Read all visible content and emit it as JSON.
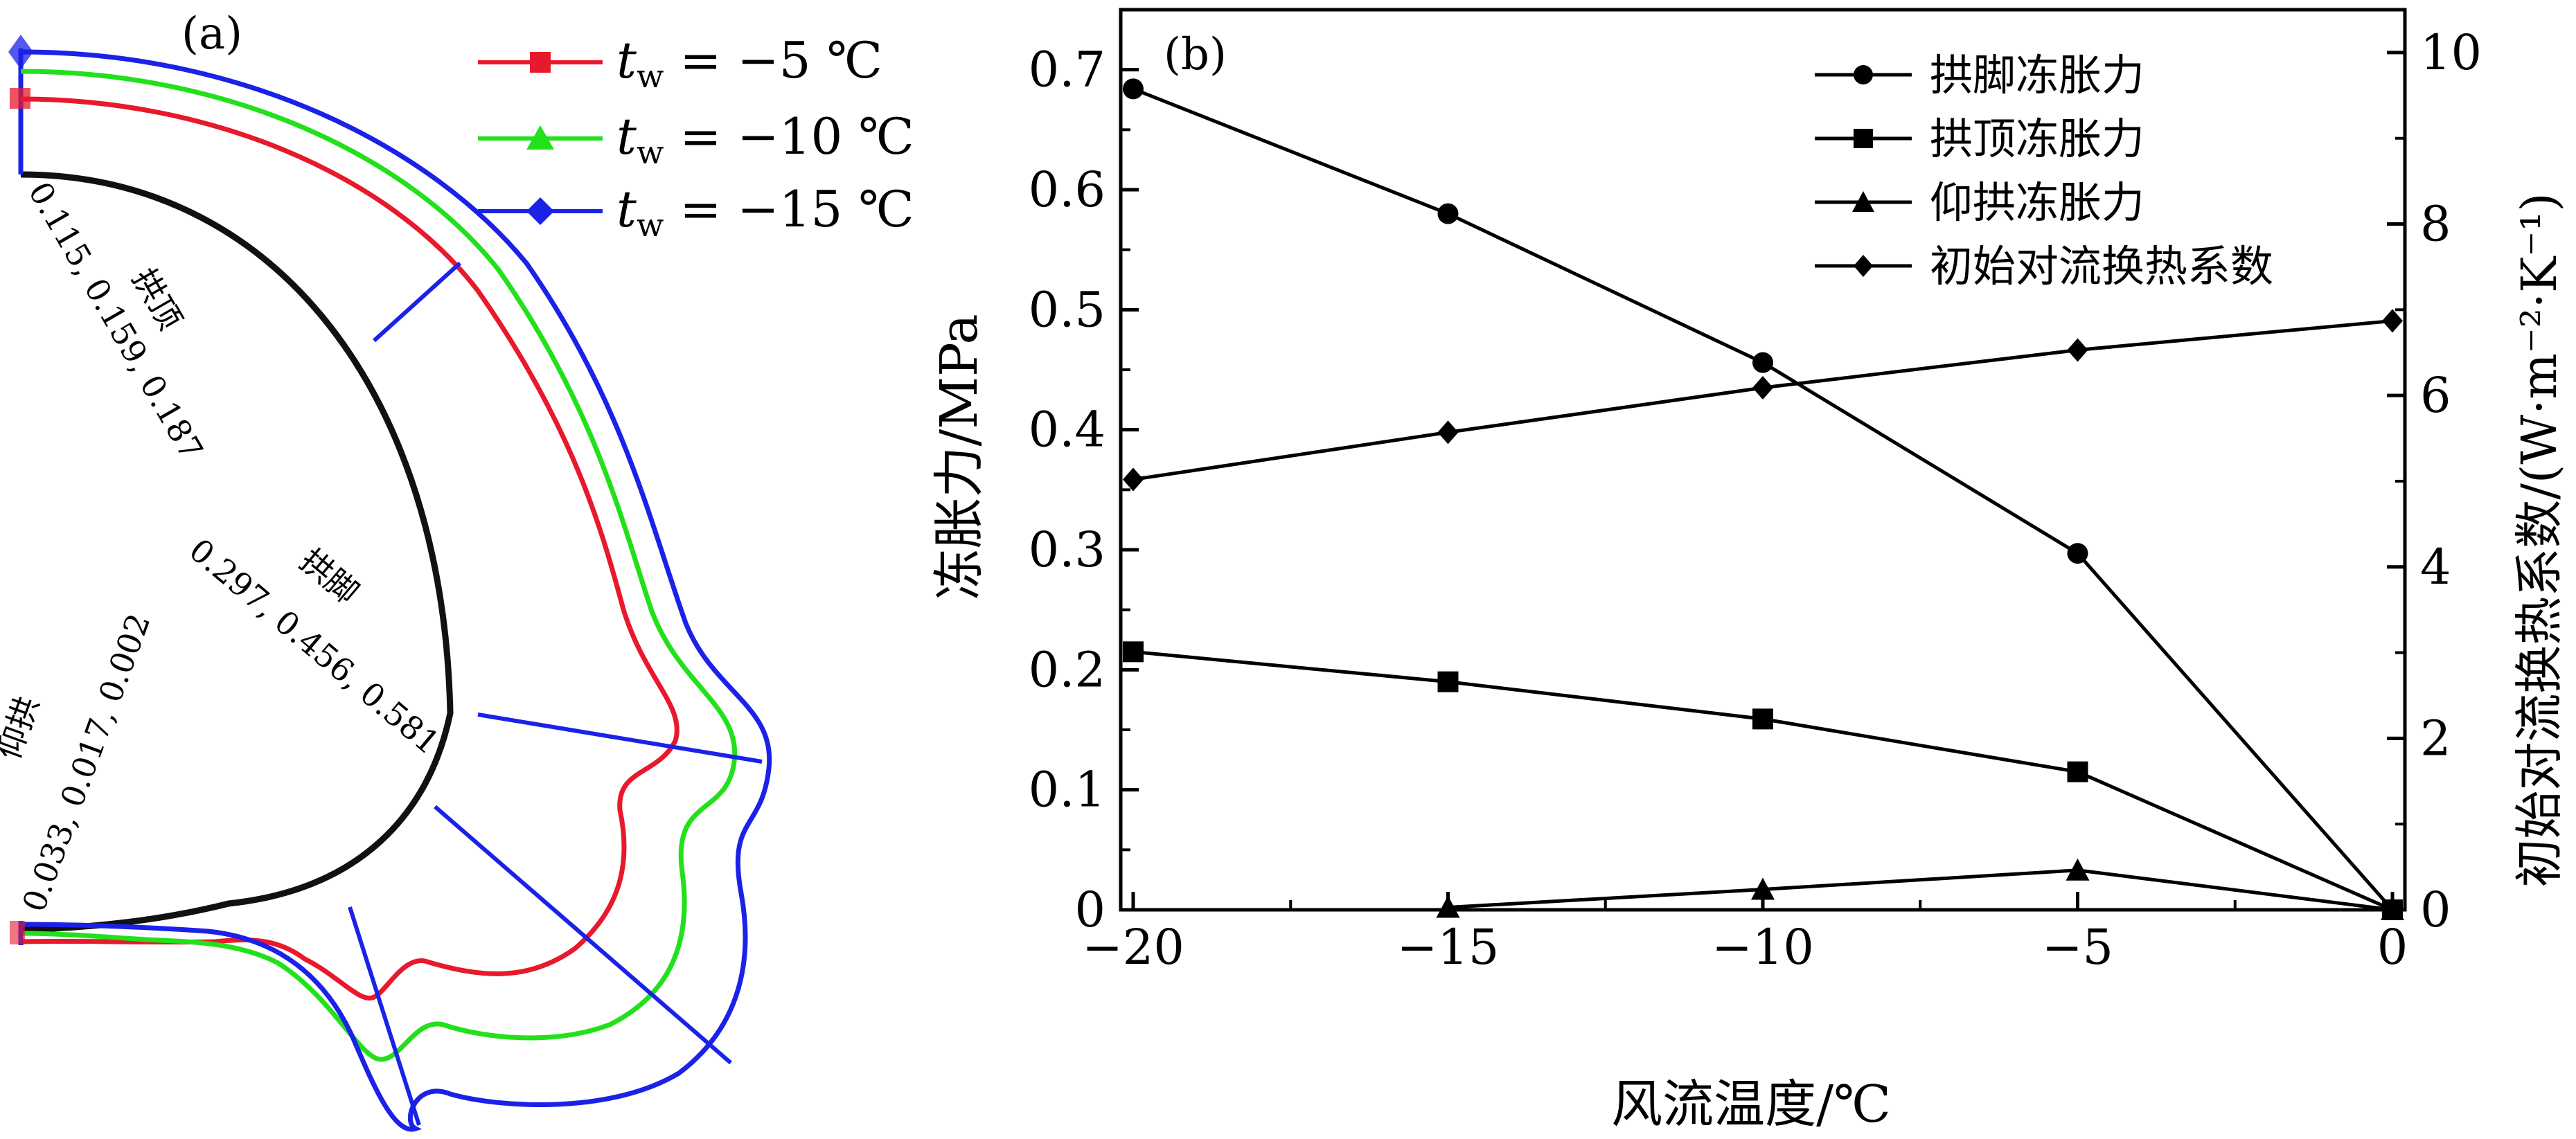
{
  "colors": {
    "axis": "#000000",
    "red": "#e8192c",
    "green": "#22e01a",
    "blue": "#1a22e8",
    "lining": "#111111",
    "marker": "#e8192c"
  },
  "panel_a": {
    "label": "(a)",
    "legend": [
      {
        "prefix": "t",
        "sub": "w",
        "rest": " = −5 ℃",
        "color": "#e8192c",
        "marker": "square"
      },
      {
        "prefix": "t",
        "sub": "w",
        "rest": " = −10 ℃",
        "color": "#22e01a",
        "marker": "triangle"
      },
      {
        "prefix": "t",
        "sub": "w",
        "rest": " = −15 ℃",
        "color": "#1a22e8",
        "marker": "diamond"
      }
    ],
    "annotations": {
      "crown_name": "拱顶",
      "crown_values": "0.115, 0.159, 0.187",
      "foot_name": "拱脚",
      "foot_values": "0.297, 0.456, 0.581",
      "invert_name": "仰拱",
      "invert_values": "0.033, 0.017, 0.002"
    }
  },
  "chart_data": {
    "type": "line",
    "label": "(b)",
    "x": [
      -20,
      -15,
      -10,
      -5,
      0
    ],
    "xlabel": "风流温度/℃",
    "ylabel": "冻胀力/MPa",
    "y2label": "初始对流换热系数/(W·m⁻²·K⁻¹)",
    "xlim": [
      -20,
      0
    ],
    "ylim": [
      0,
      0.75
    ],
    "y2lim": [
      0,
      10.5
    ],
    "xticks": [
      "−20",
      "−15",
      "−10",
      "−5",
      "0"
    ],
    "yticks": [
      "0",
      "0.1",
      "0.2",
      "0.3",
      "0.4",
      "0.5",
      "0.6",
      "0.7"
    ],
    "y2ticks": [
      "0",
      "2",
      "4",
      "6",
      "8",
      "10"
    ],
    "legend_position": "top-right",
    "grid": false,
    "series": [
      {
        "name": "拱脚冻胀力",
        "marker": "circle",
        "axis": "left",
        "values": [
          0.684,
          0.58,
          0.456,
          0.297,
          0.0
        ]
      },
      {
        "name": "拱顶冻胀力",
        "marker": "square",
        "axis": "left",
        "values": [
          0.215,
          0.19,
          0.159,
          0.115,
          0.0
        ]
      },
      {
        "name": "仰拱冻胀力",
        "marker": "triangle",
        "axis": "left",
        "values": [
          null,
          0.002,
          0.017,
          0.033,
          0.0
        ]
      },
      {
        "name": "初始对流换热系数",
        "marker": "diamond",
        "axis": "right",
        "values": [
          5.02,
          5.57,
          6.09,
          6.53,
          6.87
        ]
      }
    ]
  }
}
